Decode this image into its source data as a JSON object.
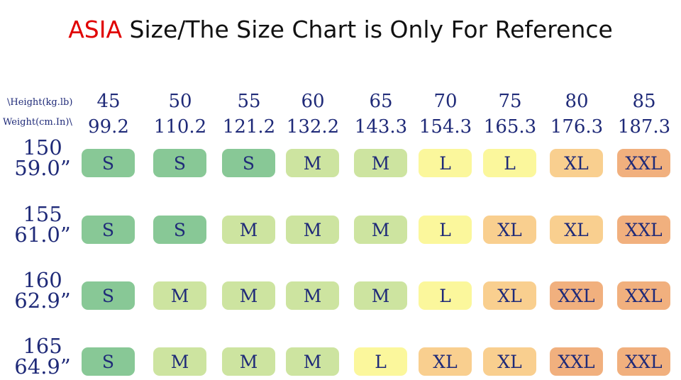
{
  "title": {
    "highlight": "ASIA",
    "rest": " Size/The Size Chart is Only For Reference"
  },
  "header": {
    "row_label_top": "\\Height(kg.lb)",
    "row_label_bottom": "Weight(cm.In)\\"
  },
  "weights_kg": [
    "45",
    "50",
    "55",
    "60",
    "65",
    "70",
    "75",
    "80",
    "85"
  ],
  "weights_lb": [
    "99.2",
    "110.2",
    "121.2",
    "132.2",
    "143.3",
    "154.3",
    "165.3",
    "176.3",
    "187.3"
  ],
  "size_colors": {
    "S": "#88c896",
    "M": "#cde4a0",
    "L": "#fbf79c",
    "XL": "#f9cf8f",
    "XXL": "#f1b07e"
  },
  "rows": [
    {
      "cm": "150",
      "in": "59.0”",
      "sizes": [
        "S",
        "S",
        "S",
        "M",
        "M",
        "L",
        "L",
        "XL",
        "XXL"
      ]
    },
    {
      "cm": "155",
      "in": "61.0”",
      "sizes": [
        "S",
        "S",
        "M",
        "M",
        "M",
        "L",
        "XL",
        "XL",
        "XXL"
      ]
    },
    {
      "cm": "160",
      "in": "62.9”",
      "sizes": [
        "S",
        "M",
        "M",
        "M",
        "M",
        "L",
        "XL",
        "XXL",
        "XXL"
      ]
    },
    {
      "cm": "165",
      "in": "64.9”",
      "sizes": [
        "S",
        "M",
        "M",
        "M",
        "L",
        "XL",
        "XL",
        "XXL",
        "XXL"
      ]
    }
  ]
}
